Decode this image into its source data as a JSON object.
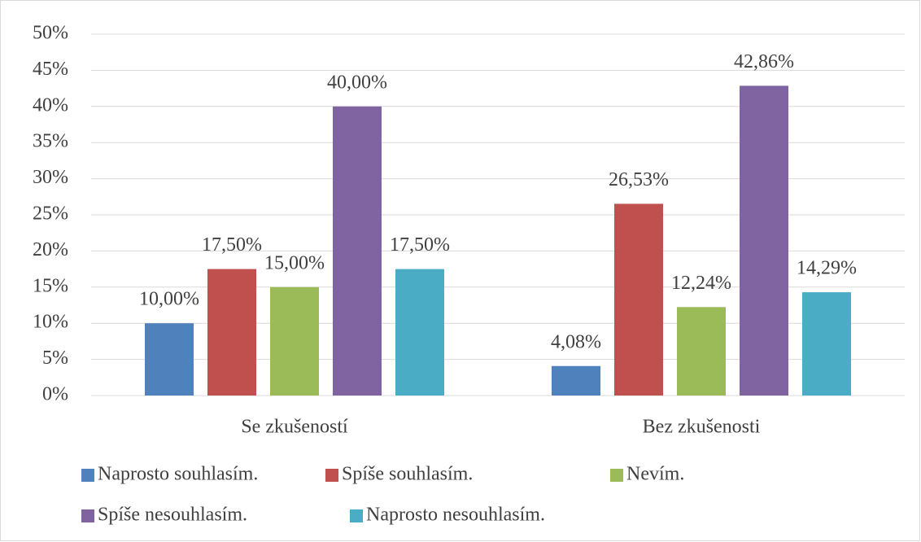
{
  "chart_data": {
    "type": "bar",
    "categories": [
      "Se zkušeností",
      "Bez zkušenosti"
    ],
    "series": [
      {
        "name": "Naprosto souhlasím.",
        "color": "#4f81bd",
        "values": [
          10,
          4.08
        ],
        "value_labels": [
          "10,00%",
          "4,08%"
        ]
      },
      {
        "name": "Spíše souhlasím.",
        "color": "#c0504d",
        "values": [
          17.5,
          26.53
        ],
        "value_labels": [
          "17,50%",
          "26,53%"
        ]
      },
      {
        "name": "Nevím.",
        "color": "#9bbb59",
        "values": [
          15,
          12.24
        ],
        "value_labels": [
          "15,00%",
          "12,24%"
        ]
      },
      {
        "name": "Spíše nesouhlasím.",
        "color": "#8064a2",
        "values": [
          40,
          42.86
        ],
        "value_labels": [
          "40,00%",
          "42,86%"
        ]
      },
      {
        "name": "Naprosto nesouhlasím.",
        "color": "#4bacc6",
        "values": [
          17.5,
          14.29
        ],
        "value_labels": [
          "17,50%",
          "14,29%"
        ]
      }
    ],
    "ylim": [
      0,
      50
    ],
    "yticks": [
      {
        "value": 0,
        "label": "0%"
      },
      {
        "value": 5,
        "label": "5%"
      },
      {
        "value": 10,
        "label": "10%"
      },
      {
        "value": 15,
        "label": "15%"
      },
      {
        "value": 20,
        "label": "20%"
      },
      {
        "value": 25,
        "label": "25%"
      },
      {
        "value": 30,
        "label": "30%"
      },
      {
        "value": 35,
        "label": "35%"
      },
      {
        "value": 40,
        "label": "40%"
      },
      {
        "value": 45,
        "label": "45%"
      },
      {
        "value": 50,
        "label": "50%"
      }
    ],
    "grid": true,
    "legend": "bottom"
  }
}
